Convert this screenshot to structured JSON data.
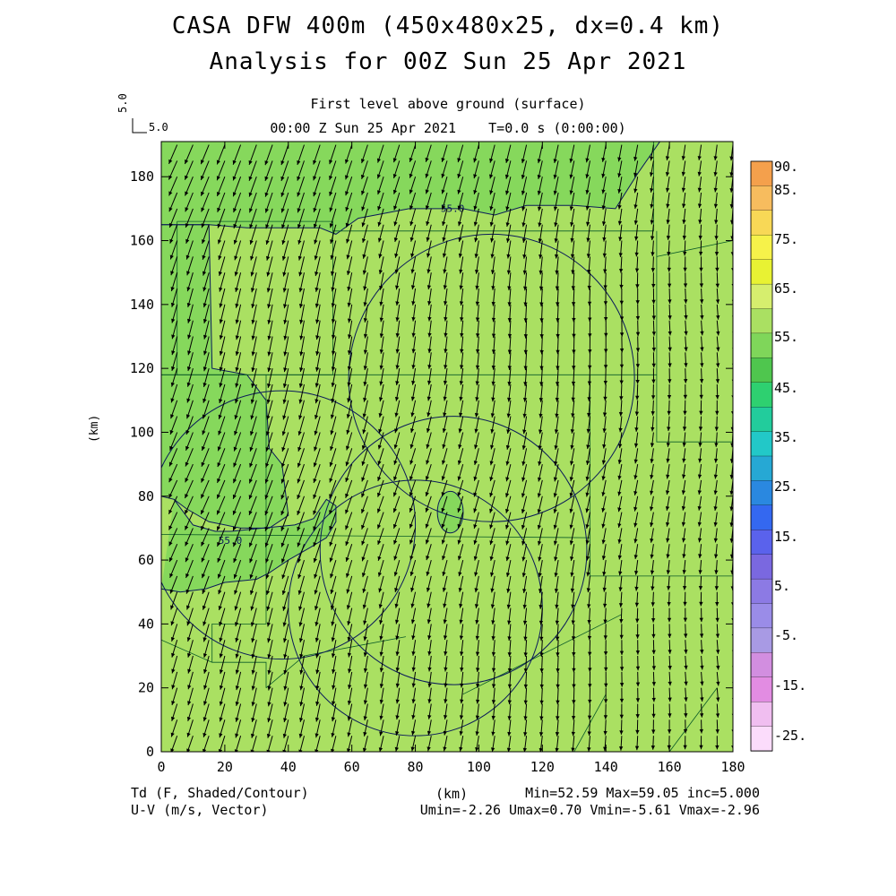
{
  "header": {
    "title_line1": "CASA DFW 400m (450x480x25, dx=0.4 km)",
    "title_line2": "Analysis for 00Z Sun 25 Apr 2021",
    "subtitle_level": "First level above ground (surface)",
    "subtitle_time": "00:00 Z Sun 25 Apr 2021    T=0.0 s (0:00:00)"
  },
  "vector_scale": {
    "vertical_label": "5.0",
    "horizontal_label": "5.0"
  },
  "footer": {
    "left_line1": "Td (F, Shaded/Contour)",
    "left_line2": "U-V (m/s, Vector)",
    "center_label": "(km)",
    "stats_line1": "Min=52.59 Max=59.05 inc=5.000",
    "stats_line2": "Umin=-2.26 Umax=0.70 Vmin=-5.61 Vmax=-2.96"
  },
  "chart_data": {
    "type": "heatmap",
    "field": "Td (F, Shaded/Contour)",
    "vectors": "U-V (m/s, Vector)",
    "xlabel": "",
    "ylabel": "(km)",
    "xlim": [
      0,
      180
    ],
    "ylim": [
      0,
      191
    ],
    "x_ticks": [
      0,
      20,
      40,
      60,
      80,
      100,
      120,
      140,
      160,
      180
    ],
    "y_ticks": [
      0,
      20,
      40,
      60,
      80,
      100,
      120,
      140,
      160,
      180
    ],
    "contour_labels": [
      "55.0",
      "55.0"
    ],
    "contour_55": [
      [
        0,
        191
      ],
      [
        0,
        165
      ],
      [
        15,
        165
      ],
      [
        27,
        164
      ],
      [
        50,
        164
      ],
      [
        55,
        162
      ],
      [
        62,
        167
      ],
      [
        78,
        170
      ],
      [
        95,
        170
      ],
      [
        105,
        168
      ],
      [
        115,
        171
      ],
      [
        130,
        171
      ],
      [
        143,
        170
      ],
      [
        150,
        181
      ],
      [
        157,
        191
      ]
    ],
    "contour_55_south": [
      [
        4,
        79
      ],
      [
        10,
        71
      ],
      [
        17,
        69
      ],
      [
        22,
        69
      ],
      [
        32,
        70
      ],
      [
        42,
        71
      ],
      [
        48,
        73
      ],
      [
        52,
        79
      ],
      [
        55,
        77
      ],
      [
        55,
        72
      ],
      [
        52,
        67
      ],
      [
        47,
        64
      ],
      [
        40,
        60
      ],
      [
        34,
        56
      ],
      [
        30,
        54
      ],
      [
        20,
        53
      ],
      [
        14,
        51
      ],
      [
        6,
        50
      ],
      [
        0,
        51
      ]
    ],
    "colorbar": {
      "labels": [
        "90.",
        "85.",
        "75.",
        "65.",
        "55.",
        "45.",
        "35.",
        "25.",
        "15.",
        "5.",
        "-5.",
        "-15.",
        "-25."
      ],
      "colors": [
        "#f4a04c",
        "#f7bc5e",
        "#f8d856",
        "#f6f24a",
        "#e8f233",
        "#d6ee6e",
        "#aae062",
        "#7fd65a",
        "#4fc64e",
        "#2ed070",
        "#22cc9c",
        "#22c8c8",
        "#26a8d4",
        "#2a88e0",
        "#3468f0",
        "#5a62ec",
        "#7a68e0",
        "#8c7ae4",
        "#9a8ce8",
        "#a89ae4",
        "#d28ee0",
        "#e28ce2",
        "#f0bef0",
        "#fbdcfb"
      ]
    },
    "wind_u_range": [
      -2.26,
      0.7
    ],
    "wind_v_range": [
      -5.61,
      -2.96
    ],
    "min": 52.59,
    "max": 59.05,
    "inc": 5.0
  }
}
